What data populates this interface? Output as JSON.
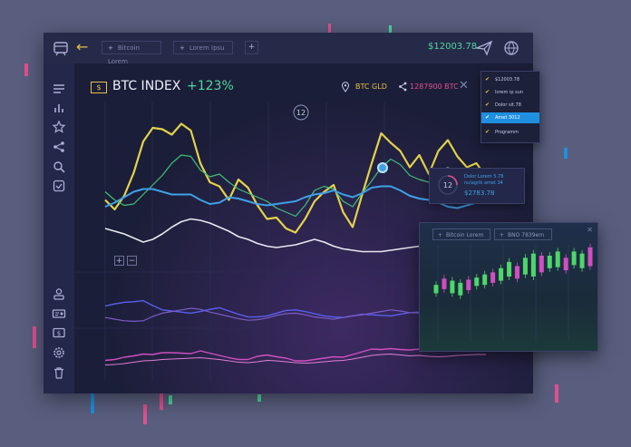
{
  "header": {
    "back_label": "←",
    "tabs": [
      {
        "label": "Bitcoin Lorem"
      },
      {
        "label": "Lorem Ipsu"
      }
    ],
    "add_tab_label": "+",
    "balance": "$12003.78"
  },
  "index": {
    "currency_symbol": "$",
    "title": "BTC INDEX",
    "change": "+123%",
    "pair_label": "BTC GLD",
    "btc_value": "1287900 BTC",
    "close_label": "✕",
    "marker_label": "12"
  },
  "dropdown": {
    "items": [
      {
        "label": "$12003.78",
        "active": false
      },
      {
        "label": "lorem ip sun",
        "active": false
      },
      {
        "label": "Dolor sit.78",
        "active": false
      },
      {
        "label": "Amet 3012",
        "active": true
      },
      {
        "label": "Programm",
        "active": false
      }
    ]
  },
  "tooltip": {
    "circle_label": "12",
    "text": "Dolor Lorem 5.78 nulagrik amet 34",
    "value": "$2783.78"
  },
  "candle_panel": {
    "tabs": [
      {
        "label": "Bitcoin Lorem"
      },
      {
        "label": "BNO 7839em"
      }
    ],
    "close_label": "✕"
  },
  "colors": {
    "background": "#595e7e",
    "accent_yellow": "#e3c04a",
    "accent_green": "#4fd6a0",
    "accent_blue": "#3fa0e6",
    "accent_pink": "#e0508f"
  },
  "icons": {
    "sidebar_top": [
      "menu-icon",
      "bar-chart-icon",
      "star-icon",
      "share-icon",
      "search-icon",
      "inbox-icon"
    ],
    "sidebar_bottom": [
      "user-icon",
      "id-card-icon",
      "money-icon",
      "settings-icon",
      "trash-icon"
    ],
    "topbar_right": [
      "send-icon",
      "globe-icon"
    ]
  },
  "chart_data": [
    {
      "type": "line",
      "x": [
        0,
        1,
        2,
        3,
        4,
        5,
        6,
        7,
        8,
        9,
        10,
        11,
        12,
        13,
        14,
        15,
        16,
        17,
        18,
        19,
        20,
        21,
        22,
        23,
        24,
        25,
        26,
        27,
        28,
        29,
        30,
        31,
        32,
        33,
        34,
        35,
        36,
        37,
        38,
        39,
        40
      ],
      "series": [
        {
          "values": [
            43,
            36,
            46,
            63,
            86,
            96,
            95,
            91,
            99,
            94,
            70,
            56,
            53,
            43,
            58,
            52,
            39,
            29,
            30,
            22,
            19,
            29,
            42,
            49,
            54,
            34,
            23,
            47,
            70,
            92,
            85,
            79,
            67,
            76,
            62,
            79,
            87,
            75,
            67,
            70,
            60
          ]
        },
        {
          "values": [
            49,
            43,
            39,
            40,
            47,
            54,
            61,
            70,
            76,
            75,
            65,
            60,
            62,
            56,
            51,
            48,
            45,
            42,
            37,
            34,
            31,
            39,
            50,
            53,
            51,
            42,
            38,
            48,
            57,
            67,
            73,
            69,
            61,
            58,
            56,
            64,
            67,
            61,
            55,
            50,
            46
          ]
        },
        {
          "values": [
            38,
            41,
            45,
            49,
            51,
            51,
            49,
            47,
            47,
            47,
            43,
            40,
            41,
            45,
            44,
            42,
            40,
            39,
            40,
            41,
            42,
            45,
            47,
            48,
            50,
            47,
            45,
            48,
            52,
            53,
            53,
            50,
            46,
            44,
            43,
            41,
            38,
            37,
            39,
            41,
            42
          ]
        },
        {
          "values": [
            22,
            20,
            18,
            15,
            12,
            14,
            18,
            23,
            27,
            29,
            28,
            26,
            23,
            20,
            16,
            14,
            11,
            9,
            8,
            9,
            10,
            12,
            14,
            12,
            9,
            7,
            6,
            5,
            5,
            5,
            6,
            7,
            8,
            9,
            10,
            11,
            12,
            13,
            14,
            15,
            16
          ]
        }
      ]
    },
    {
      "type": "line",
      "x": [
        0,
        1,
        2,
        3,
        4,
        5,
        6,
        7,
        8,
        9,
        10,
        11,
        12,
        13,
        14,
        15,
        16,
        17,
        18,
        19,
        20,
        21,
        22,
        23,
        24,
        25,
        26,
        27,
        28,
        29,
        30,
        31,
        32,
        33,
        34,
        35,
        36,
        37,
        38,
        39,
        40
      ],
      "series": [
        {
          "values": [
            54,
            58,
            61,
            62,
            64,
            55,
            47,
            45,
            43,
            41,
            44,
            48,
            51,
            45,
            39,
            34,
            34,
            36,
            41,
            46,
            47,
            44,
            40,
            36,
            34,
            33,
            36,
            39,
            38,
            37,
            36,
            39,
            42,
            43,
            41,
            40,
            41,
            42,
            44,
            46,
            48
          ]
        },
        {
          "values": [
            33,
            30,
            27,
            26,
            27,
            35,
            41,
            44,
            47,
            50,
            48,
            43,
            39,
            35,
            31,
            28,
            29,
            32,
            37,
            40,
            41,
            38,
            34,
            32,
            30,
            33,
            36,
            38,
            41,
            44,
            47,
            45,
            42,
            41,
            43,
            45,
            47,
            48,
            49,
            50,
            51
          ]
        }
      ]
    },
    {
      "type": "line",
      "x": [
        0,
        1,
        2,
        3,
        4,
        5,
        6,
        7,
        8,
        9,
        10,
        11,
        12,
        13,
        14,
        15,
        16,
        17,
        18,
        19,
        20,
        21,
        22,
        23,
        24,
        25,
        26,
        27,
        28,
        29,
        30,
        31,
        32,
        33,
        34,
        35,
        36,
        37,
        38,
        39,
        40
      ],
      "series": [
        {
          "values": [
            41,
            43,
            48,
            51,
            55,
            54,
            58,
            58,
            57,
            56,
            62,
            57,
            52,
            47,
            43,
            43,
            50,
            53,
            49,
            46,
            40,
            40,
            43,
            46,
            49,
            48,
            54,
            60,
            66,
            65,
            67,
            65,
            64,
            66,
            63,
            62,
            63,
            65,
            67,
            66,
            65
          ]
        },
        {
          "values": [
            31,
            32,
            34,
            37,
            40,
            41,
            43,
            44,
            45,
            46,
            47,
            45,
            43,
            40,
            37,
            36,
            38,
            41,
            40,
            38,
            36,
            35,
            36,
            38,
            40,
            41,
            44,
            48,
            52,
            54,
            55,
            53,
            51,
            52,
            50,
            49,
            50,
            52,
            53,
            54,
            54
          ]
        }
      ]
    },
    {
      "type": "bar",
      "categories": [
        "1",
        "2",
        "3",
        "4",
        "5",
        "6",
        "7",
        "8",
        "9",
        "10",
        "11",
        "12",
        "13",
        "14",
        "15",
        "16",
        "17",
        "18",
        "19",
        "20"
      ],
      "series": [
        {
          "values": [
            [
              44,
              52
            ],
            [
              48,
              58
            ],
            [
              44,
              56
            ],
            [
              42,
              54
            ],
            [
              47,
              57
            ],
            [
              51,
              59
            ],
            [
              52,
              62
            ],
            [
              54,
              64
            ],
            [
              56,
              68
            ],
            [
              60,
              74
            ],
            [
              58,
              70
            ],
            [
              62,
              78
            ],
            [
              60,
              82
            ],
            [
              64,
              80
            ],
            [
              68,
              80
            ],
            [
              69,
              84
            ],
            [
              66,
              78
            ],
            [
              71,
              84
            ],
            [
              68,
              82
            ],
            [
              70,
              88
            ]
          ]
        }
      ]
    }
  ]
}
